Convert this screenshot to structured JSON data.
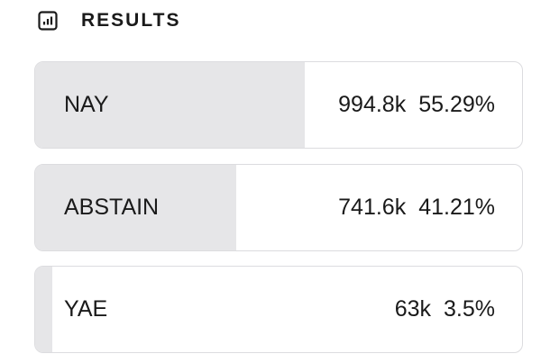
{
  "header": {
    "title": "RESULTS"
  },
  "options": [
    {
      "label": "NAY",
      "votes": "994.8k",
      "percent": {
        "value": 55.29,
        "label": "55.29%"
      }
    },
    {
      "label": "ABSTAIN",
      "votes": "741.6k",
      "percent": {
        "value": 41.21,
        "label": "41.21%"
      }
    },
    {
      "label": "YAE",
      "votes": "63k",
      "percent": {
        "value": 3.5,
        "label": "3.5%"
      }
    }
  ]
}
